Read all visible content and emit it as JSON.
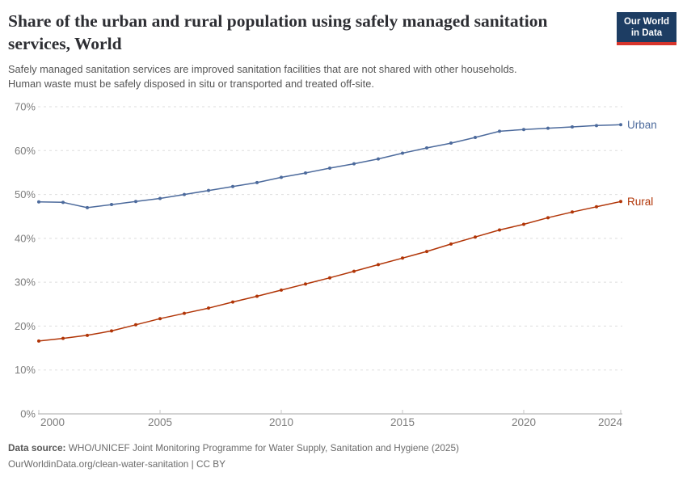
{
  "header": {
    "title_lines": [
      "Share of the urban and rural population using safely managed sanitation",
      "services, World"
    ],
    "subtitle_lines": [
      "Safely managed sanitation services are improved sanitation facilities that are not shared with other households.",
      "Human waste must be safely disposed in situ or transported and treated off-site."
    ]
  },
  "logo": {
    "lines": [
      "Our World",
      "in Data"
    ],
    "bg_color": "#1d3d63",
    "bar_color": "#d7352c",
    "text_color": "#ffffff"
  },
  "chart_data": {
    "type": "line",
    "title": "Share of the urban and rural population using safely managed sanitation services, World",
    "x": [
      2000,
      2001,
      2002,
      2003,
      2004,
      2005,
      2006,
      2007,
      2008,
      2009,
      2010,
      2011,
      2012,
      2013,
      2014,
      2015,
      2016,
      2017,
      2018,
      2019,
      2020,
      2021,
      2022,
      2023,
      2024
    ],
    "series": [
      {
        "name": "Urban",
        "color": "#4C6A9C",
        "values": [
          48.3,
          48.2,
          47.0,
          47.7,
          48.4,
          49.1,
          50.0,
          50.9,
          51.8,
          52.7,
          53.9,
          54.9,
          56.0,
          57.0,
          58.1,
          59.4,
          60.6,
          61.7,
          63.0,
          64.4,
          64.8,
          65.1,
          65.4,
          65.7,
          65.9
        ]
      },
      {
        "name": "Rural",
        "color": "#B13507",
        "values": [
          16.6,
          17.2,
          17.9,
          18.9,
          20.3,
          21.7,
          22.9,
          24.1,
          25.5,
          26.8,
          28.2,
          29.6,
          31.0,
          32.5,
          34.0,
          35.5,
          37.0,
          38.7,
          40.3,
          41.9,
          43.2,
          44.7,
          46.0,
          47.2,
          48.4
        ]
      }
    ],
    "xlabel": "",
    "ylabel": "",
    "ylim": [
      0,
      70
    ],
    "yticks": [
      0,
      10,
      20,
      30,
      40,
      50,
      60,
      70
    ],
    "ytick_suffix": "%",
    "xticks": [
      2000,
      2005,
      2010,
      2015,
      2020,
      2024
    ],
    "grid": "horizontal-dashed",
    "legend_position": "line-end-labels",
    "axis_color": "#a7a7a7",
    "gridline_color": "#dedede",
    "tick_label_color": "#7d7d7d"
  },
  "footer": {
    "source_label": "Data source:",
    "source_text": " WHO/UNICEF Joint Monitoring Programme for Water Supply, Sanitation and Hygiene (2025)",
    "link_text": "OurWorldinData.org/clean-water-sanitation | CC BY"
  }
}
